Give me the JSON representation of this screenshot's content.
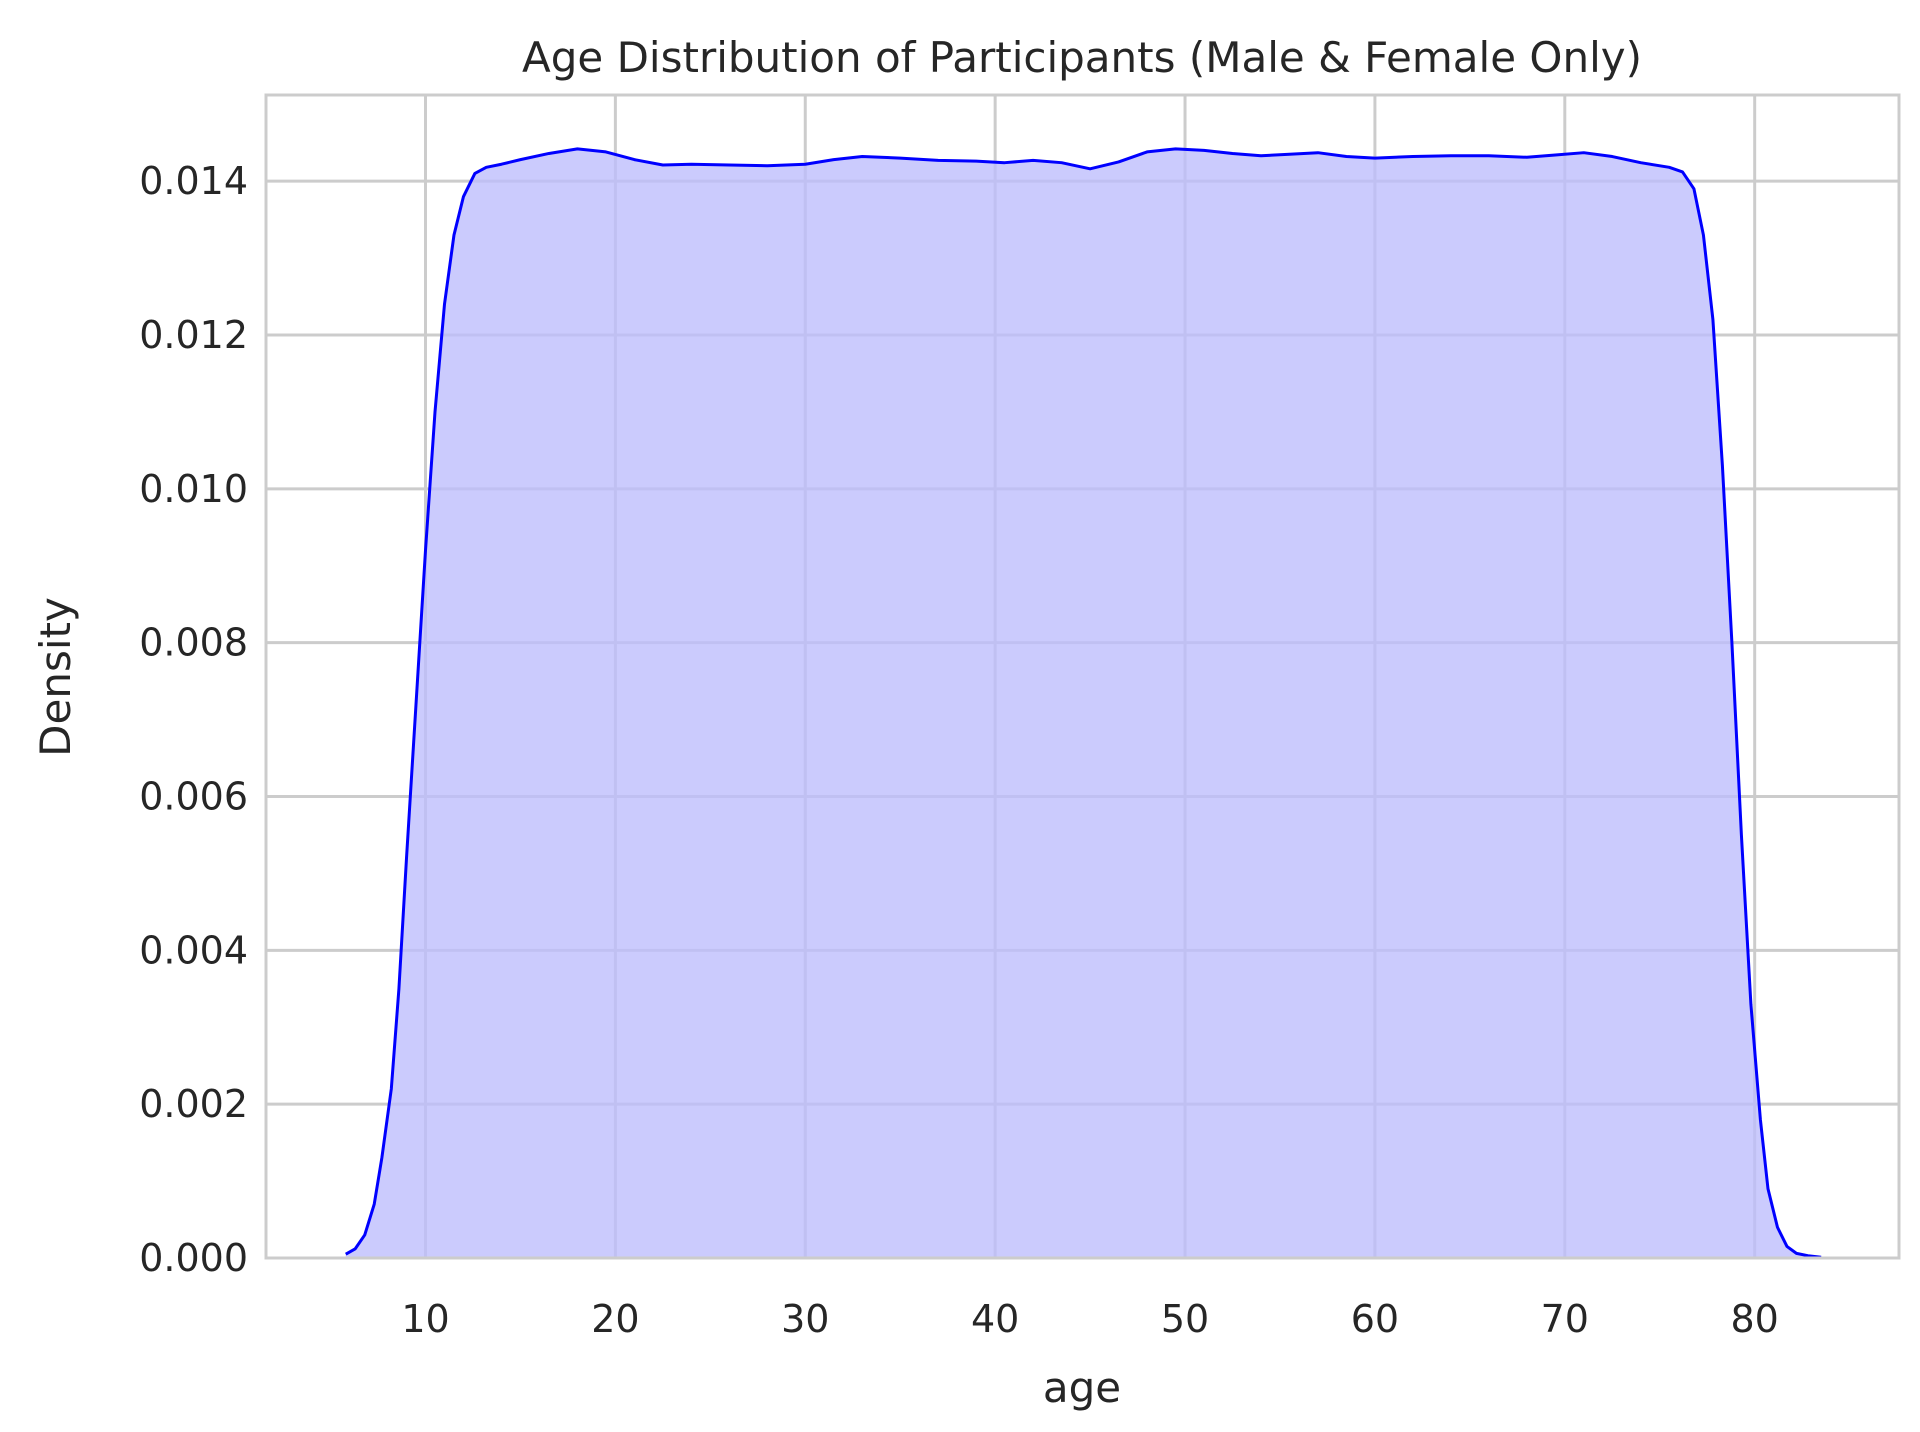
{
  "chart_data": {
    "type": "area",
    "title": "Age Distribution of Participants (Male & Female Only)",
    "xlabel": "age",
    "ylabel": "Density",
    "xlim": [
      1.6,
      87.6
    ],
    "ylim": [
      0,
      0.01512
    ],
    "x_ticks": [
      "10",
      "20",
      "30",
      "40",
      "50",
      "60",
      "70",
      "80"
    ],
    "x_tick_values": [
      10,
      20,
      30,
      40,
      50,
      60,
      70,
      80
    ],
    "y_ticks": [
      "0.000",
      "0.002",
      "0.004",
      "0.006",
      "0.008",
      "0.010",
      "0.012",
      "0.014"
    ],
    "y_tick_values": [
      0,
      0.002,
      0.004,
      0.006,
      0.008,
      0.01,
      0.012,
      0.014
    ],
    "grid": true,
    "line_color": "#0000ff",
    "fill_color": "#bcbcfd",
    "series": [
      {
        "x": [
          5.8,
          6.3,
          6.8,
          7.3,
          7.7,
          8.2,
          8.6,
          9.0,
          9.5,
          10.0,
          10.5,
          11.0,
          11.5,
          12.0,
          12.6,
          13.2,
          14.0,
          15.0,
          16.5,
          18.0,
          19.5,
          21.0,
          22.5,
          24.0,
          26.0,
          28.0,
          30.0,
          31.5,
          33.0,
          35.0,
          37.0,
          39.0,
          40.5,
          42.0,
          43.5,
          45.0,
          46.5,
          48.0,
          49.5,
          51.0,
          52.5,
          54.0,
          55.5,
          57.0,
          58.5,
          60.0,
          62.0,
          64.0,
          66.0,
          68.0,
          69.5,
          71.0,
          72.5,
          74.0,
          75.5,
          76.2,
          76.8,
          77.3,
          77.8,
          78.3,
          78.8,
          79.3,
          79.8,
          80.3,
          80.7,
          81.2,
          81.7,
          82.2,
          82.8,
          83.5
        ],
        "y": [
          5e-05,
          0.00012,
          0.0003,
          0.0007,
          0.0013,
          0.0022,
          0.0035,
          0.0052,
          0.0072,
          0.0092,
          0.011,
          0.0124,
          0.0133,
          0.0138,
          0.0141,
          0.01418,
          0.01422,
          0.01428,
          0.01436,
          0.01442,
          0.01438,
          0.01428,
          0.01421,
          0.01422,
          0.01421,
          0.0142,
          0.01422,
          0.01428,
          0.01432,
          0.0143,
          0.01427,
          0.01426,
          0.01424,
          0.01427,
          0.01424,
          0.01416,
          0.01425,
          0.01438,
          0.01442,
          0.0144,
          0.01436,
          0.01433,
          0.01435,
          0.01437,
          0.01432,
          0.0143,
          0.01432,
          0.01433,
          0.01433,
          0.01431,
          0.01434,
          0.01437,
          0.01432,
          0.01424,
          0.01418,
          0.01412,
          0.0139,
          0.0133,
          0.0122,
          0.0103,
          0.008,
          0.0055,
          0.0033,
          0.0018,
          0.0009,
          0.0004,
          0.00015,
          6e-05,
          3e-05,
          1e-05
        ]
      }
    ]
  }
}
